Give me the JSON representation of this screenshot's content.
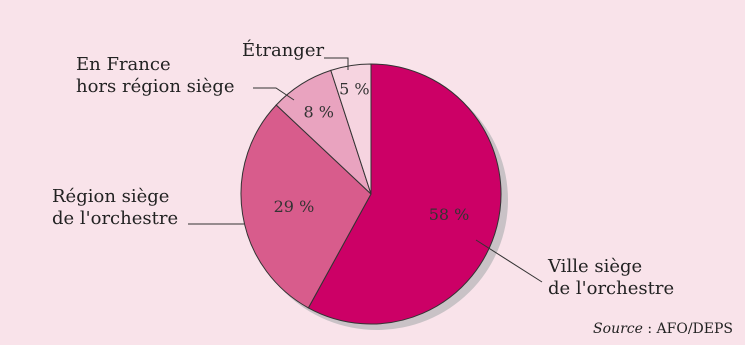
{
  "chart_data": {
    "type": "pie",
    "slices": [
      {
        "label": "Ville siège de l'orchestre",
        "value": 58,
        "value_label": "58 %",
        "color": "#cc0066"
      },
      {
        "label": "Région siège de l'orchestre",
        "value": 29,
        "value_label": "29 %",
        "color": "#d85c8c"
      },
      {
        "label": "En France hors région siège",
        "value": 8,
        "value_label": "8 %",
        "color": "#e9a3bf"
      },
      {
        "label": "Étranger",
        "value": 5,
        "value_label": "5 %",
        "color": "#f6d4e0"
      }
    ]
  },
  "labels": {
    "ville_line1": "Ville siège",
    "ville_line2": "de l'orchestre",
    "region_line1": "Région siège",
    "region_line2": "de l'orchestre",
    "france_line1": "En France",
    "france_line2": "hors région siège",
    "etranger": "Étranger"
  },
  "source": {
    "prefix": "Source",
    "text": " : AFO/DEPS"
  }
}
